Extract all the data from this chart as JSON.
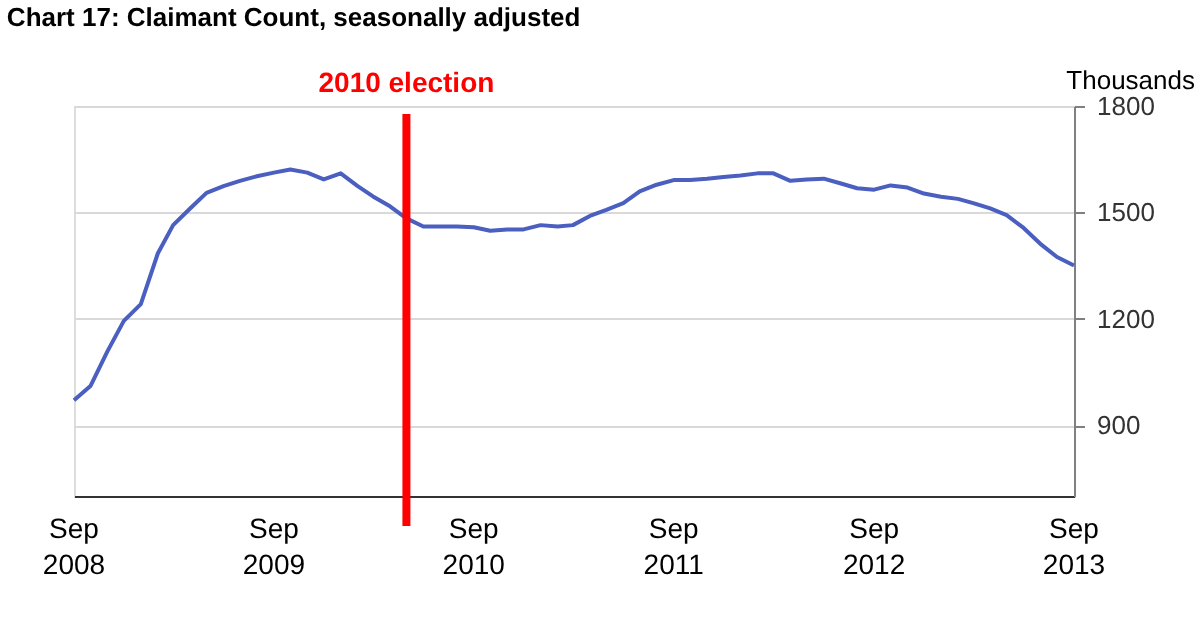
{
  "chart_data": {
    "type": "line",
    "title": "Chart 17: Claimant Count, seasonally adjusted",
    "ylabel": "Thousands",
    "x": [
      "2008-09",
      "2008-10",
      "2008-11",
      "2008-12",
      "2009-01",
      "2009-02",
      "2009-03",
      "2009-04",
      "2009-05",
      "2009-06",
      "2009-07",
      "2009-08",
      "2009-09",
      "2009-10",
      "2009-11",
      "2009-12",
      "2010-01",
      "2010-02",
      "2010-03",
      "2010-04",
      "2010-05",
      "2010-06",
      "2010-07",
      "2010-08",
      "2010-09",
      "2010-10",
      "2010-11",
      "2010-12",
      "2011-01",
      "2011-02",
      "2011-03",
      "2011-04",
      "2011-05",
      "2011-06",
      "2011-07",
      "2011-08",
      "2011-09",
      "2011-10",
      "2011-11",
      "2011-12",
      "2012-01",
      "2012-02",
      "2012-03",
      "2012-04",
      "2012-05",
      "2012-06",
      "2012-07",
      "2012-08",
      "2012-09",
      "2012-10",
      "2012-11",
      "2012-12",
      "2013-01",
      "2013-02",
      "2013-03",
      "2013-04",
      "2013-05",
      "2013-06",
      "2013-07",
      "2013-08",
      "2013-09"
    ],
    "series": [
      {
        "color": "#4a5fbf",
        "values": [
          970,
          1010,
          1108,
          1194,
          1241,
          1384,
          1464,
          1511,
          1555,
          1574,
          1589,
          1602,
          1612,
          1621,
          1612,
          1593,
          1610,
          1574,
          1545,
          1517,
          1483,
          1460,
          1460,
          1460,
          1458,
          1448,
          1452,
          1452,
          1464,
          1460,
          1464,
          1490,
          1507,
          1526,
          1559,
          1578,
          1591,
          1591,
          1595,
          1600,
          1604,
          1610,
          1610,
          1589,
          1593,
          1595,
          1582,
          1568,
          1564,
          1576,
          1570,
          1553,
          1544,
          1538,
          1526,
          1511,
          1492,
          1456,
          1412,
          1374,
          1350
        ]
      }
    ],
    "xlim": [
      "2008-09",
      "2013-09"
    ],
    "xticks": [
      {
        "value": "2008-09",
        "label": "Sep 2008"
      },
      {
        "value": "2009-09",
        "label": "Sep 2009"
      },
      {
        "value": "2010-09",
        "label": "Sep 2010"
      },
      {
        "value": "2011-09",
        "label": "Sep 2011"
      },
      {
        "value": "2012-09",
        "label": "Sep 2012"
      },
      {
        "value": "2013-09",
        "label": "Sep 2013"
      }
    ],
    "ylim": [
      700,
      1800
    ],
    "yticks": [
      900,
      1200,
      1500,
      1800
    ],
    "grid": "y",
    "marker": "none",
    "line_style": "solid",
    "ref_lines": [
      {
        "axis": "x",
        "value": "2010-05",
        "label": "2010 election",
        "color": "#ff0000"
      }
    ]
  }
}
